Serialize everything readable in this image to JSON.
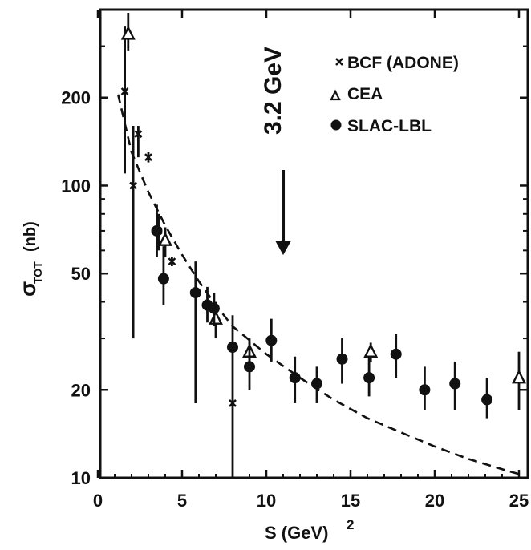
{
  "chart_data": {
    "type": "scatter",
    "xlabel": "S (GeV)",
    "xlabel_sup": "2",
    "ylabel": "σ",
    "ylabel_sub": "TOT",
    "ylabel_unit": "(nb)",
    "xlim": [
      0,
      26
    ],
    "ylim": [
      10,
      400
    ],
    "y_scale": "log",
    "x_ticks": [
      0,
      5,
      10,
      15,
      20,
      25
    ],
    "x_tick_labels": [
      "0",
      "5",
      "10",
      "15",
      "20",
      "25"
    ],
    "y_ticks": [
      10,
      20,
      50,
      100,
      200
    ],
    "y_tick_labels": [
      "10",
      "20",
      "50",
      "100",
      "200"
    ],
    "grid": false,
    "legend_position": "top-right",
    "annotation": {
      "text": "3.2 GeV",
      "x": 10.24,
      "arrow_to_y": 55
    },
    "series": [
      {
        "name": "BCF (ADONE)",
        "marker": "x",
        "points": [
          {
            "x": 1.6,
            "y": 210,
            "lo": 110,
            "hi": 350
          },
          {
            "x": 2.1,
            "y": 100,
            "lo": 30,
            "hi": 160
          },
          {
            "x": 2.4,
            "y": 150,
            "lo": 125,
            "hi": 160
          },
          {
            "x": 3.0,
            "y": 125,
            "lo": 120,
            "hi": 130
          },
          {
            "x": 3.6,
            "y": 70,
            "lo": 60,
            "hi": 80
          },
          {
            "x": 4.4,
            "y": 55,
            "lo": 53,
            "hi": 57
          },
          {
            "x": 8.0,
            "y": 18,
            "lo": 10,
            "hi": 21
          }
        ]
      },
      {
        "name": "CEA",
        "marker": "triangle",
        "points": [
          {
            "x": 1.8,
            "y": 330,
            "lo": 290,
            "hi": 390
          },
          {
            "x": 4.0,
            "y": 65,
            "lo": 57,
            "hi": 72
          },
          {
            "x": 7.0,
            "y": 35,
            "lo": 30,
            "hi": 40
          },
          {
            "x": 9.0,
            "y": 27,
            "lo": 24,
            "hi": 30
          },
          {
            "x": 16.2,
            "y": 27,
            "lo": 25,
            "hi": 29
          },
          {
            "x": 25.0,
            "y": 22,
            "lo": 17,
            "hi": 27
          }
        ]
      },
      {
        "name": "SLAC-LBL",
        "marker": "circle",
        "points": [
          {
            "x": 3.5,
            "y": 70,
            "lo": 57,
            "hi": 86
          },
          {
            "x": 3.9,
            "y": 48,
            "lo": 39,
            "hi": 62
          },
          {
            "x": 5.8,
            "y": 43,
            "lo": 18,
            "hi": 55
          },
          {
            "x": 6.5,
            "y": 39,
            "lo": 34,
            "hi": 45
          },
          {
            "x": 6.9,
            "y": 38,
            "lo": 33,
            "hi": 43
          },
          {
            "x": 8.0,
            "y": 28,
            "lo": 21,
            "hi": 36
          },
          {
            "x": 9.0,
            "y": 24,
            "lo": 20,
            "hi": 29
          },
          {
            "x": 10.3,
            "y": 29.5,
            "lo": 25,
            "hi": 35
          },
          {
            "x": 11.7,
            "y": 22,
            "lo": 18,
            "hi": 26
          },
          {
            "x": 13.0,
            "y": 21,
            "lo": 18,
            "hi": 24
          },
          {
            "x": 14.5,
            "y": 25.5,
            "lo": 21,
            "hi": 30
          },
          {
            "x": 16.1,
            "y": 22,
            "lo": 19,
            "hi": 26
          },
          {
            "x": 17.7,
            "y": 26.5,
            "lo": 22,
            "hi": 31
          },
          {
            "x": 19.4,
            "y": 20,
            "lo": 17,
            "hi": 24
          },
          {
            "x": 21.2,
            "y": 21,
            "lo": 17,
            "hi": 25
          },
          {
            "x": 23.1,
            "y": 18.5,
            "lo": 16,
            "hi": 22
          }
        ]
      }
    ],
    "curve": {
      "style": "dashed",
      "x": [
        1.2,
        2,
        3,
        4,
        5,
        6,
        7,
        8,
        10,
        12,
        14,
        16,
        18,
        20,
        22,
        24,
        25
      ],
      "y": [
        205,
        130,
        95,
        73,
        58,
        47,
        39,
        33,
        26.5,
        22,
        18.5,
        16,
        14.3,
        12.8,
        11.6,
        10.7,
        10.3
      ]
    }
  }
}
